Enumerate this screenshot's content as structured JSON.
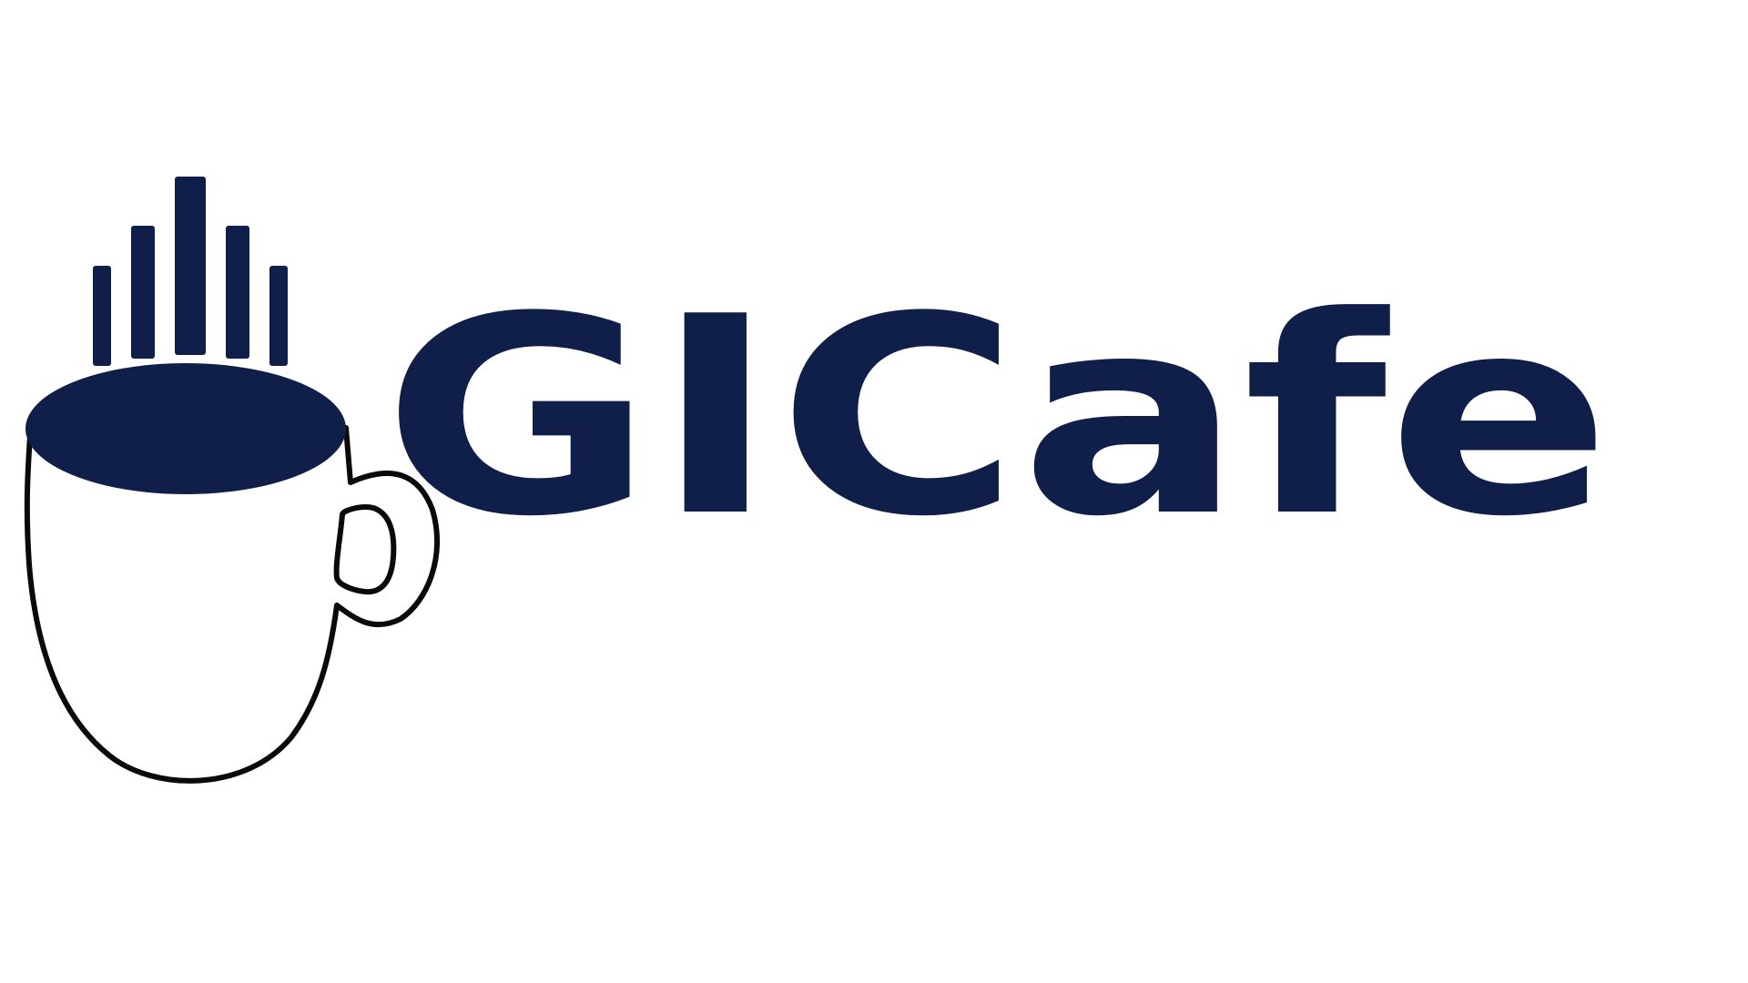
{
  "logo": {
    "wordmark_text": "GICafe",
    "colors": {
      "navy": "#0f1f4a",
      "outline": "#0a0a0a",
      "background": "#ffffff"
    },
    "icons": [
      "coffee-cup-icon",
      "steam-bars-icon"
    ]
  }
}
